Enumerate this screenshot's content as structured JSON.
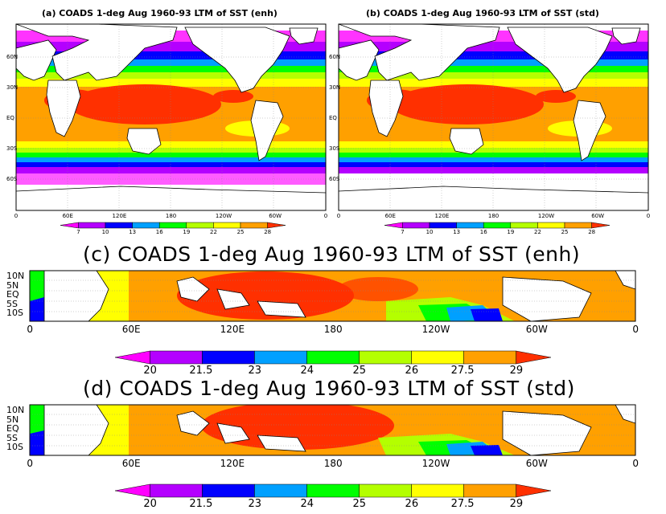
{
  "panels": [
    {
      "id": "a",
      "title": "(a) COADS 1-deg Aug 1960-93 LTM of SST (enh)",
      "xticks": [
        "0",
        "60E",
        "120E",
        "180",
        "120W",
        "60W",
        "0"
      ],
      "yticks": [
        "60N",
        "30N",
        "EQ",
        "30S",
        "60S"
      ]
    },
    {
      "id": "b",
      "title": "(b) COADS 1-deg Aug 1960-93 LTM of SST (std)",
      "xticks": [
        "0",
        "60E",
        "120E",
        "180",
        "120W",
        "60W",
        "0"
      ],
      "yticks": [
        "60N",
        "30N",
        "EQ",
        "30S",
        "60S"
      ]
    },
    {
      "id": "c",
      "title": "(c) COADS 1-deg Aug 1960-93 LTM of SST (enh)",
      "xticks": [
        "0",
        "60E",
        "120E",
        "180",
        "120W",
        "60W",
        "0"
      ],
      "yticks": [
        "10N",
        "5N",
        "EQ",
        "5S",
        "10S"
      ]
    },
    {
      "id": "d",
      "title": "(d) COADS 1-deg Aug 1960-93 LTM of SST (std)",
      "xticks": [
        "0",
        "60E",
        "120E",
        "180",
        "120W",
        "60W",
        "0"
      ],
      "yticks": [
        "10N",
        "5N",
        "EQ",
        "5S",
        "10S"
      ]
    }
  ],
  "colorbar_global": {
    "labels": [
      "7",
      "10",
      "13",
      "16",
      "19",
      "22",
      "25",
      "28"
    ],
    "colors": [
      "#ff00ff",
      "#b400ff",
      "#0000ff",
      "#00a0ff",
      "#00ff00",
      "#b4ff00",
      "#ffff00",
      "#ffa000",
      "#ff3000"
    ]
  },
  "colorbar_tropics": {
    "labels": [
      "20",
      "21.5",
      "23",
      "24",
      "25",
      "26",
      "27.5",
      "29"
    ],
    "colors": [
      "#ff00ff",
      "#b400ff",
      "#0000ff",
      "#00a0ff",
      "#00ff00",
      "#b4ff00",
      "#ffff00",
      "#ffa000",
      "#ff3000"
    ]
  }
}
